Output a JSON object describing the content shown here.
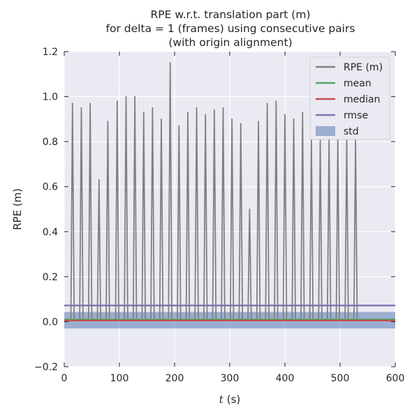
{
  "chart_data": {
    "type": "line",
    "title_lines": [
      "RPE w.r.t. translation part (m)",
      "for delta = 1 (frames) using consecutive pairs",
      "(with origin alignment)"
    ],
    "xlabel_symbol": "t",
    "xlabel_unit": "(s)",
    "ylabel": "RPE (m)",
    "xlim": [
      0,
      600
    ],
    "ylim": [
      -0.2,
      1.2
    ],
    "xticks": [
      0,
      100,
      200,
      300,
      400,
      500,
      600
    ],
    "yticks": [
      -0.2,
      0.0,
      0.2,
      0.4,
      0.6,
      0.8,
      1.0,
      1.2
    ],
    "grid": true,
    "legend_position": "top-right",
    "series": [
      {
        "name": "RPE (m)",
        "color": "#808080",
        "x_end": 540,
        "baseline": 0.01,
        "peaks": [
          {
            "x": 15,
            "y": 0.97
          },
          {
            "x": 31,
            "y": 0.95
          },
          {
            "x": 47,
            "y": 0.97
          },
          {
            "x": 63,
            "y": 0.63
          },
          {
            "x": 79,
            "y": 0.89
          },
          {
            "x": 96,
            "y": 0.98
          },
          {
            "x": 112,
            "y": 1.0
          },
          {
            "x": 128,
            "y": 1.0
          },
          {
            "x": 144,
            "y": 0.93
          },
          {
            "x": 160,
            "y": 0.95
          },
          {
            "x": 176,
            "y": 0.9
          },
          {
            "x": 192,
            "y": 1.15
          },
          {
            "x": 208,
            "y": 0.87
          },
          {
            "x": 224,
            "y": 0.93
          },
          {
            "x": 240,
            "y": 0.95
          },
          {
            "x": 256,
            "y": 0.92
          },
          {
            "x": 272,
            "y": 0.94
          },
          {
            "x": 288,
            "y": 0.95
          },
          {
            "x": 304,
            "y": 0.9
          },
          {
            "x": 320,
            "y": 0.88
          },
          {
            "x": 336,
            "y": 0.5
          },
          {
            "x": 352,
            "y": 0.89
          },
          {
            "x": 368,
            "y": 0.97
          },
          {
            "x": 384,
            "y": 0.98
          },
          {
            "x": 400,
            "y": 0.92
          },
          {
            "x": 416,
            "y": 0.9
          },
          {
            "x": 432,
            "y": 0.93
          },
          {
            "x": 448,
            "y": 0.81
          },
          {
            "x": 464,
            "y": 0.81
          },
          {
            "x": 480,
            "y": 0.81
          },
          {
            "x": 496,
            "y": 0.81
          },
          {
            "x": 512,
            "y": 0.81
          },
          {
            "x": 528,
            "y": 0.81
          }
        ]
      },
      {
        "name": "mean",
        "color": "#55a868",
        "value": 0.01
      },
      {
        "name": "median",
        "color": "#c44e52",
        "value": 0.005
      },
      {
        "name": "rmse",
        "color": "#8172b2",
        "value": 0.072
      }
    ],
    "std_band": {
      "name": "std",
      "color": "#4c72b0",
      "low": -0.03,
      "high": 0.043
    },
    "legend_entries": [
      "RPE (m)",
      "mean",
      "median",
      "rmse",
      "std"
    ]
  },
  "colors": {
    "axes_bg": "#eaeaf2",
    "grid": "#ffffff",
    "text": "#262626"
  }
}
